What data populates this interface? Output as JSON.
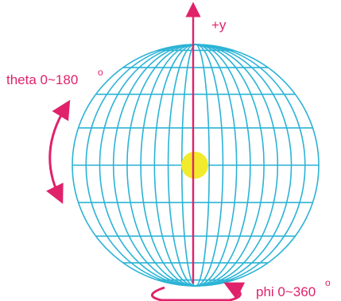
{
  "labels": {
    "y_axis": "+y",
    "theta": "theta 0~180",
    "theta_sup": "o",
    "phi": "phi 0~360",
    "phi_sup": "o"
  },
  "sphere": {
    "latitude_segments": 10,
    "longitude_rings_visible": 8
  },
  "colors": {
    "wire": "#2bb3d6",
    "accent": "#e0226a",
    "center": "#f2ea2c",
    "background": "#ffffff"
  }
}
